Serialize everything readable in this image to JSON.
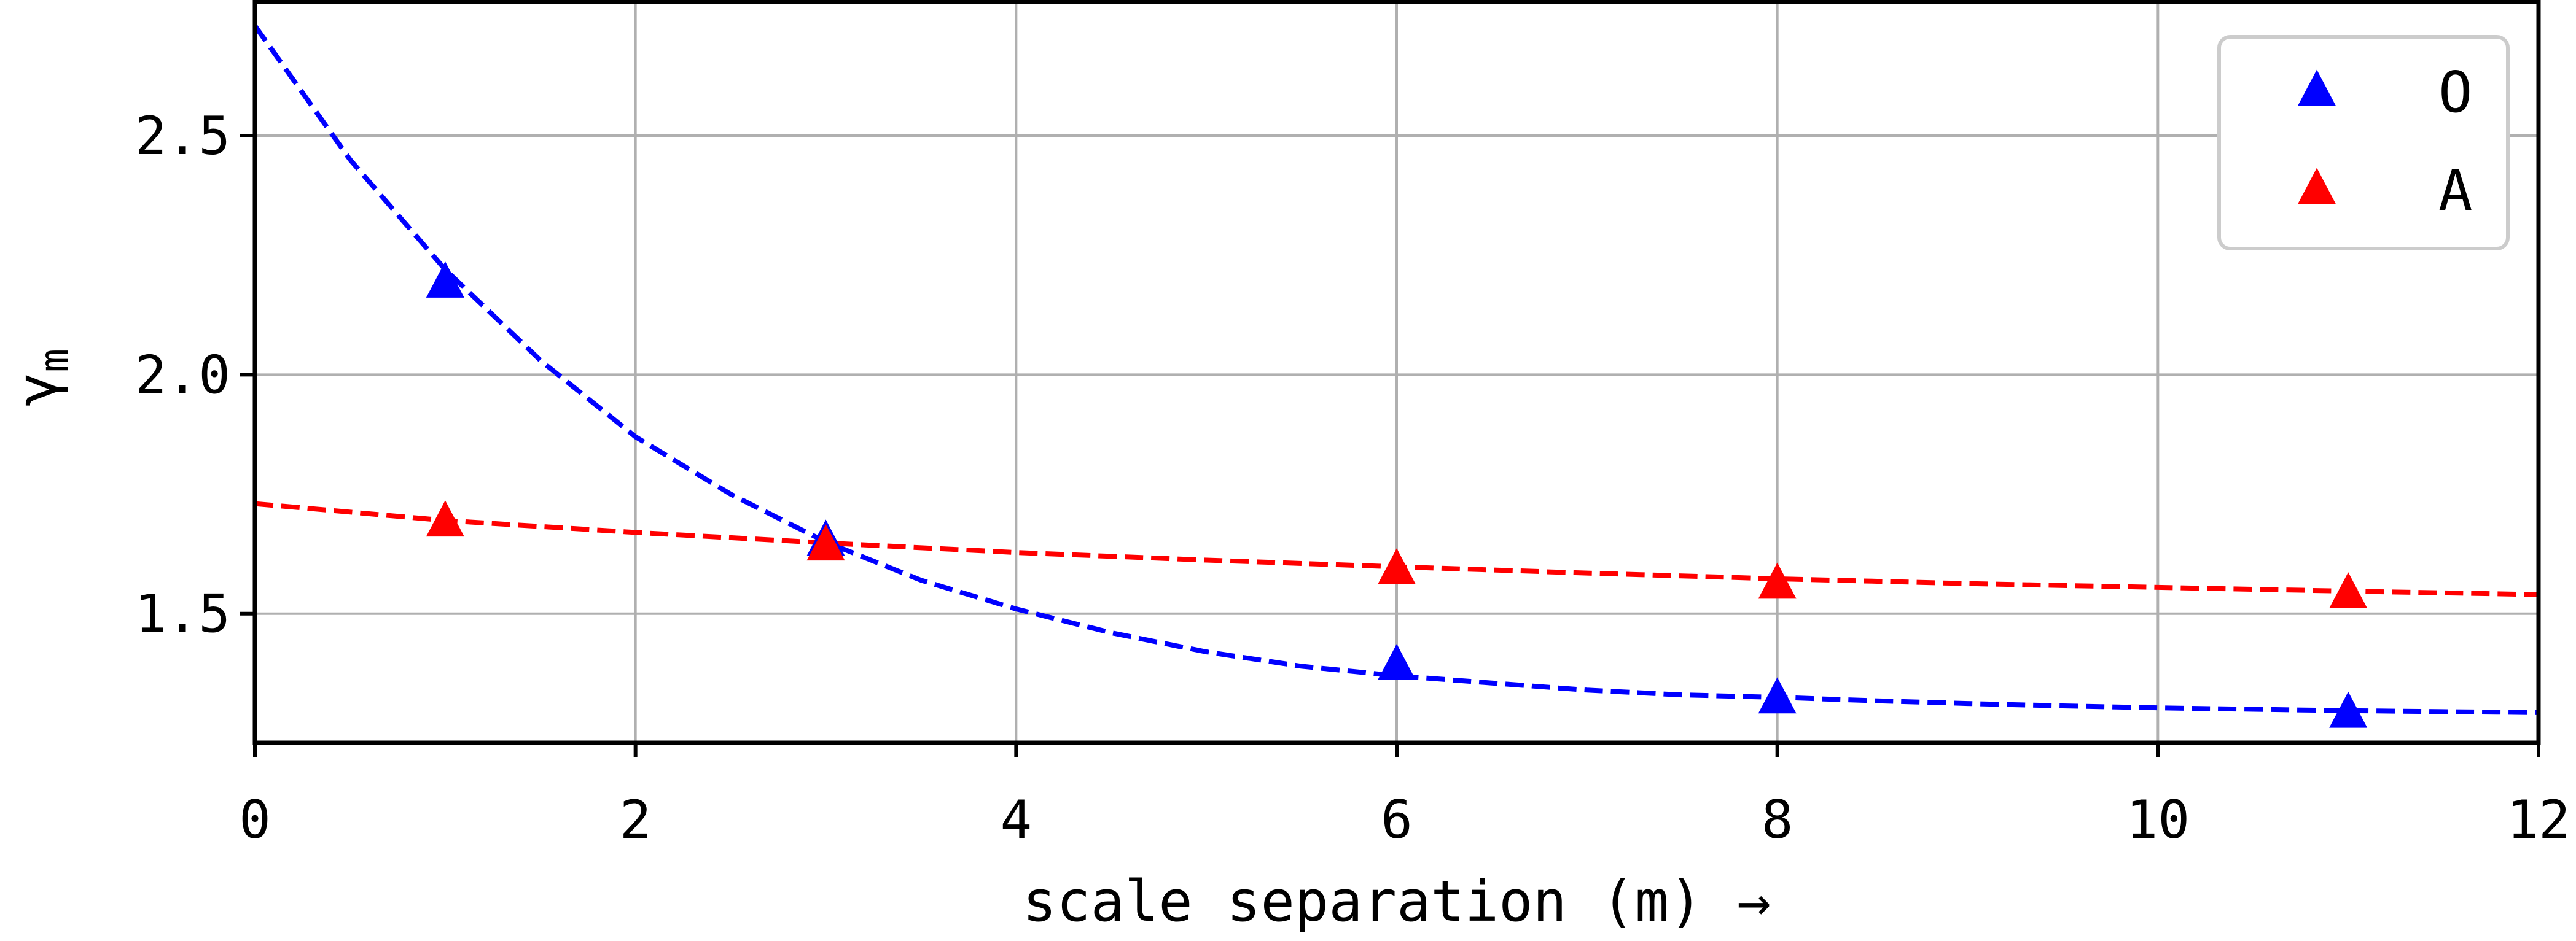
{
  "chart_data": {
    "type": "scatter",
    "xlabel": "scale separation (m) →",
    "ylabel": "γ",
    "ylabel_subscript": "m",
    "xlim": [
      0,
      12
    ],
    "ylim": [
      1.23,
      2.78
    ],
    "xticks": [
      0,
      2,
      4,
      6,
      8,
      10,
      12
    ],
    "xtick_labels": [
      "0",
      "2",
      "4",
      "6",
      "8",
      "10",
      "12"
    ],
    "yticks": [
      1.5,
      2.0,
      2.5
    ],
    "ytick_labels": [
      "1.5",
      "2.0",
      "2.5"
    ],
    "grid": true,
    "legend_position": "top-right",
    "series": [
      {
        "name": "O",
        "color": "#0000ff",
        "marker": "triangle-up",
        "x": [
          1,
          3,
          6,
          8,
          11
        ],
        "y": [
          2.19,
          1.65,
          1.39,
          1.32,
          1.29
        ],
        "fit": {
          "style": "dashed",
          "x": [
            0,
            0.5,
            1,
            1.5,
            2,
            2.5,
            3,
            3.5,
            4,
            4.5,
            5,
            5.5,
            6,
            6.5,
            7,
            7.5,
            8,
            8.5,
            9,
            9.5,
            10,
            10.5,
            11,
            11.5,
            12
          ],
          "y": [
            2.73,
            2.45,
            2.22,
            2.03,
            1.87,
            1.75,
            1.65,
            1.57,
            1.51,
            1.46,
            1.42,
            1.39,
            1.37,
            1.355,
            1.34,
            1.33,
            1.325,
            1.318,
            1.312,
            1.307,
            1.303,
            1.3,
            1.297,
            1.295,
            1.293
          ]
        }
      },
      {
        "name": "A",
        "color": "#ff0000",
        "marker": "triangle-up",
        "x": [
          1,
          3,
          6,
          8,
          11
        ],
        "y": [
          1.69,
          1.64,
          1.59,
          1.56,
          1.54
        ],
        "fit": {
          "style": "dashed",
          "x": [
            0,
            1,
            2,
            3,
            4,
            5,
            6,
            7,
            8,
            9,
            10,
            11,
            12
          ],
          "y": [
            1.73,
            1.695,
            1.67,
            1.648,
            1.628,
            1.612,
            1.598,
            1.585,
            1.573,
            1.563,
            1.555,
            1.547,
            1.54
          ]
        }
      }
    ]
  }
}
